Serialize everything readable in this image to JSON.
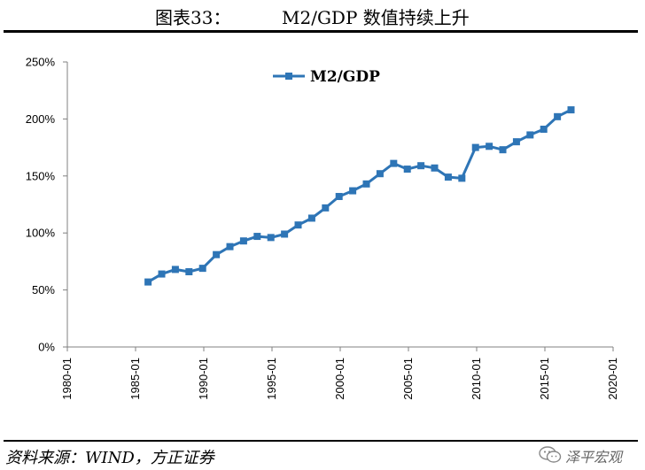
{
  "figure": {
    "prefix": "图表33：",
    "name": "M2/GDP 数值持续上升"
  },
  "source_note": "资料来源：WIND，方正证券",
  "watermark": {
    "text": "泽平宏观",
    "icon": "wechat-icon"
  },
  "colors": {
    "series": "#2E75B6",
    "axis": "#808080",
    "text": "#000000"
  },
  "chart_data": {
    "type": "line",
    "title": "",
    "xlabel": "",
    "ylabel": "",
    "legend_position": "top-left",
    "grid": false,
    "x_ticks": [
      "1980-01",
      "1985-01",
      "1990-01",
      "1995-01",
      "2000-01",
      "2005-01",
      "2010-01",
      "2015-01",
      "2020-01"
    ],
    "x_range": [
      "1980-01",
      "2020-01"
    ],
    "y_ticks": [
      "0%",
      "50%",
      "100%",
      "150%",
      "200%",
      "250%"
    ],
    "ylim": [
      0,
      250
    ],
    "y_unit": "%",
    "series": [
      {
        "name": "M2/GDP",
        "marker": "square",
        "points": [
          {
            "x": "1985-12",
            "y": 57
          },
          {
            "x": "1986-12",
            "y": 64
          },
          {
            "x": "1987-12",
            "y": 68
          },
          {
            "x": "1988-12",
            "y": 66
          },
          {
            "x": "1989-12",
            "y": 69
          },
          {
            "x": "1990-12",
            "y": 81
          },
          {
            "x": "1991-12",
            "y": 88
          },
          {
            "x": "1992-12",
            "y": 93
          },
          {
            "x": "1993-12",
            "y": 97
          },
          {
            "x": "1994-12",
            "y": 96
          },
          {
            "x": "1995-12",
            "y": 99
          },
          {
            "x": "1996-12",
            "y": 107
          },
          {
            "x": "1997-12",
            "y": 113
          },
          {
            "x": "1998-12",
            "y": 122
          },
          {
            "x": "1999-12",
            "y": 132
          },
          {
            "x": "2000-12",
            "y": 137
          },
          {
            "x": "2001-12",
            "y": 143
          },
          {
            "x": "2002-12",
            "y": 152
          },
          {
            "x": "2003-12",
            "y": 161
          },
          {
            "x": "2004-12",
            "y": 156
          },
          {
            "x": "2005-12",
            "y": 159
          },
          {
            "x": "2006-12",
            "y": 157
          },
          {
            "x": "2007-12",
            "y": 149
          },
          {
            "x": "2008-12",
            "y": 148
          },
          {
            "x": "2009-12",
            "y": 175
          },
          {
            "x": "2010-12",
            "y": 176
          },
          {
            "x": "2011-12",
            "y": 173
          },
          {
            "x": "2012-12",
            "y": 180
          },
          {
            "x": "2013-12",
            "y": 186
          },
          {
            "x": "2014-12",
            "y": 191
          },
          {
            "x": "2015-12",
            "y": 202
          },
          {
            "x": "2016-12",
            "y": 208
          }
        ]
      }
    ]
  }
}
